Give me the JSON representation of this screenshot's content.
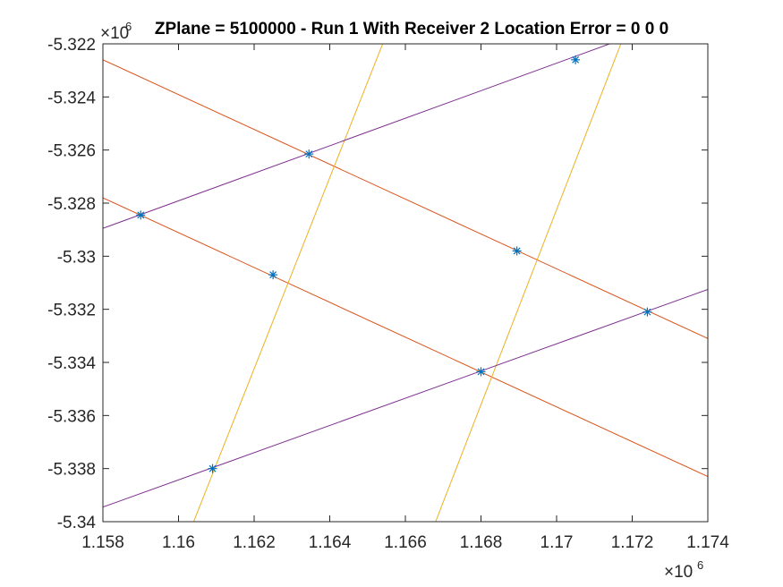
{
  "chart_data": {
    "type": "scatter",
    "title": "ZPlane = 5100000 - Run 1 With Receiver 2 Location Error = 0  0  0",
    "xlabel": "",
    "ylabel": "",
    "xlim": [
      1158000,
      1174000
    ],
    "ylim": [
      -5340000,
      -5322000
    ],
    "x_multiplier_label": "×10",
    "x_multiplier_exp": "6",
    "y_multiplier_label": "×10",
    "y_multiplier_exp": "6",
    "x_ticks": [
      1158000,
      1160000,
      1162000,
      1164000,
      1166000,
      1168000,
      1170000,
      1172000,
      1174000
    ],
    "x_tick_labels": [
      "1.158",
      "1.16",
      "1.162",
      "1.164",
      "1.166",
      "1.168",
      "1.17",
      "1.172",
      "1.174"
    ],
    "y_ticks": [
      -5340000,
      -5338000,
      -5336000,
      -5334000,
      -5332000,
      -5330000,
      -5328000,
      -5326000,
      -5324000,
      -5322000
    ],
    "y_tick_labels": [
      "-5.34",
      "-5.338",
      "-5.336",
      "-5.334",
      "-5.332",
      "-5.33",
      "-5.328",
      "-5.326",
      "-5.324",
      "-5.322"
    ],
    "grid": false,
    "series": [
      {
        "color": "#D95319",
        "type": "line",
        "points": [
          [
            1158000,
            -5322600
          ],
          [
            1174000,
            -5333100
          ]
        ]
      },
      {
        "color": "#D95319",
        "type": "line",
        "points": [
          [
            1158000,
            -5327800
          ],
          [
            1174000,
            -5338300
          ]
        ]
      },
      {
        "color": "#EDB120",
        "type": "line",
        "points": [
          [
            1160400,
            -5340000
          ],
          [
            1165400,
            -5322000
          ]
        ]
      },
      {
        "color": "#EDB120",
        "type": "line",
        "points": [
          [
            1166800,
            -5340000
          ],
          [
            1171700,
            -5322000
          ]
        ]
      },
      {
        "color": "#7E2F8E",
        "type": "line",
        "points": [
          [
            1158000,
            -5328950
          ],
          [
            1171500,
            -5321950
          ]
        ]
      },
      {
        "color": "#7E2F8E",
        "type": "line",
        "points": [
          [
            1158000,
            -5339450
          ],
          [
            1174000,
            -5331250
          ]
        ]
      },
      {
        "color": "#0072BD",
        "type": "markers",
        "marker": "asterisk",
        "points": [
          [
            1159000,
            -5328450
          ],
          [
            1163450,
            -5326150
          ],
          [
            1170500,
            -5322600
          ],
          [
            1162500,
            -5330700
          ],
          [
            1168950,
            -5329800
          ],
          [
            1160900,
            -5338000
          ],
          [
            1168000,
            -5334350
          ],
          [
            1172400,
            -5332100
          ]
        ]
      }
    ]
  }
}
